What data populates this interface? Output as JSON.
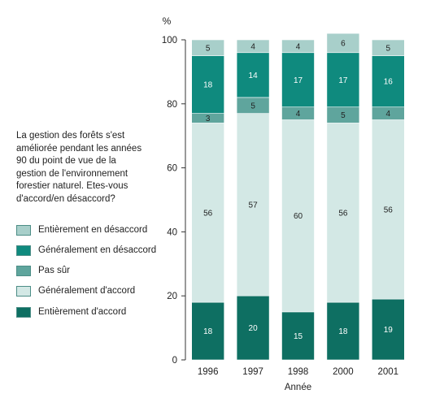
{
  "question": "La gestion des forêts s'est\naméliorée pendant les années\n90 du point de vue de la\ngestion de l'environnement\nforestier naturel. Etes-vous\nd'accord/en désaccord?",
  "legend": [
    {
      "label": "Entièrement en désaccord",
      "color": "#a8cfca"
    },
    {
      "label": "Généralement en désaccord",
      "color": "#0f8a7e"
    },
    {
      "label": "Pas sûr",
      "color": "#5fa59d"
    },
    {
      "label": "Généralement d'accord",
      "color": "#d3e8e5"
    },
    {
      "label": "Entièrement d'accord",
      "color": "#0e6f62"
    }
  ],
  "chart_data": {
    "type": "bar",
    "stacked": true,
    "categories": [
      "1996",
      "1997",
      "1998",
      "2000",
      "2001"
    ],
    "series": [
      {
        "name": "Entièrement d'accord",
        "values": [
          18,
          20,
          15,
          18,
          19
        ],
        "color": "#0e6f62",
        "label_color": "#ffffff"
      },
      {
        "name": "Généralement d'accord",
        "values": [
          56,
          57,
          60,
          56,
          56
        ],
        "color": "#d3e8e5",
        "label_color": "#222222"
      },
      {
        "name": "Pas sûr",
        "values": [
          3,
          5,
          4,
          5,
          4
        ],
        "color": "#5fa59d",
        "label_color": "#222222"
      },
      {
        "name": "Généralement en désaccord",
        "values": [
          18,
          14,
          17,
          17,
          16
        ],
        "color": "#0f8a7e",
        "label_color": "#ffffff"
      },
      {
        "name": "Entièrement en désaccord",
        "values": [
          5,
          4,
          4,
          6,
          5
        ],
        "color": "#a8cfca",
        "label_color": "#222222"
      }
    ],
    "ylabel": "%",
    "xlabel": "Année",
    "ylim": [
      0,
      100
    ],
    "yticks": [
      0,
      20,
      40,
      60,
      80,
      100
    ],
    "grid": false,
    "legend_position": "left"
  }
}
